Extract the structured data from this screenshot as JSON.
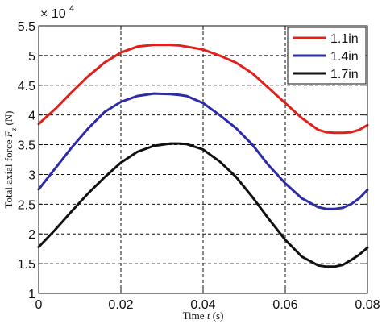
{
  "chart_data": {
    "type": "line",
    "xlabel": "Time t (s)",
    "ylabel": "Total axial force F_z (N)",
    "ylabel_main": "Total axial force ",
    "ylabel_var": "F",
    "ylabel_sub": "z",
    "ylabel_unit": " (N)",
    "xlabel_main": "Time ",
    "xlabel_var": "t",
    "xlabel_unit": " (s)",
    "y_multiplier": "× 10",
    "y_multiplier_exp": "4",
    "xlim": [
      0,
      0.08
    ],
    "ylim": [
      1,
      5.5
    ],
    "x_ticks": [
      "0",
      "0.02",
      "0.04",
      "0.06",
      "0.08"
    ],
    "y_ticks": [
      "1",
      "1.5",
      "2",
      "2.5",
      "3",
      "3.5",
      "4",
      "4.5",
      "5",
      "5.5"
    ],
    "grid": true,
    "legend_position": "top-right",
    "series": [
      {
        "name": "1.1in",
        "color": "#e0201b",
        "x": [
          0,
          0.004,
          0.008,
          0.012,
          0.016,
          0.02,
          0.024,
          0.028,
          0.032,
          0.034,
          0.036,
          0.04,
          0.044,
          0.048,
          0.052,
          0.056,
          0.06,
          0.064,
          0.068,
          0.07,
          0.072,
          0.074,
          0.076,
          0.078,
          0.08
        ],
        "values": [
          3.85,
          4.1,
          4.38,
          4.65,
          4.88,
          5.05,
          5.15,
          5.18,
          5.18,
          5.17,
          5.15,
          5.1,
          5.0,
          4.88,
          4.7,
          4.45,
          4.2,
          3.95,
          3.75,
          3.71,
          3.7,
          3.7,
          3.71,
          3.75,
          3.83
        ]
      },
      {
        "name": "1.4in",
        "color": "#2d2ba8",
        "x": [
          0,
          0.004,
          0.008,
          0.012,
          0.016,
          0.02,
          0.024,
          0.028,
          0.032,
          0.034,
          0.036,
          0.04,
          0.044,
          0.048,
          0.052,
          0.056,
          0.06,
          0.064,
          0.068,
          0.07,
          0.072,
          0.074,
          0.076,
          0.078,
          0.08
        ],
        "values": [
          2.75,
          3.1,
          3.45,
          3.77,
          4.05,
          4.22,
          4.32,
          4.36,
          4.35,
          4.34,
          4.32,
          4.2,
          4.0,
          3.78,
          3.5,
          3.15,
          2.85,
          2.6,
          2.45,
          2.42,
          2.42,
          2.44,
          2.5,
          2.6,
          2.74
        ]
      },
      {
        "name": "1.7in",
        "color": "#111111",
        "x": [
          0,
          0.004,
          0.008,
          0.012,
          0.016,
          0.02,
          0.024,
          0.028,
          0.032,
          0.034,
          0.036,
          0.04,
          0.044,
          0.048,
          0.052,
          0.056,
          0.06,
          0.064,
          0.068,
          0.07,
          0.072,
          0.074,
          0.076,
          0.078,
          0.08
        ],
        "values": [
          1.78,
          2.07,
          2.38,
          2.68,
          2.95,
          3.2,
          3.38,
          3.48,
          3.52,
          3.52,
          3.51,
          3.42,
          3.22,
          2.96,
          2.62,
          2.25,
          1.9,
          1.62,
          1.47,
          1.45,
          1.45,
          1.48,
          1.56,
          1.65,
          1.77
        ]
      }
    ]
  }
}
